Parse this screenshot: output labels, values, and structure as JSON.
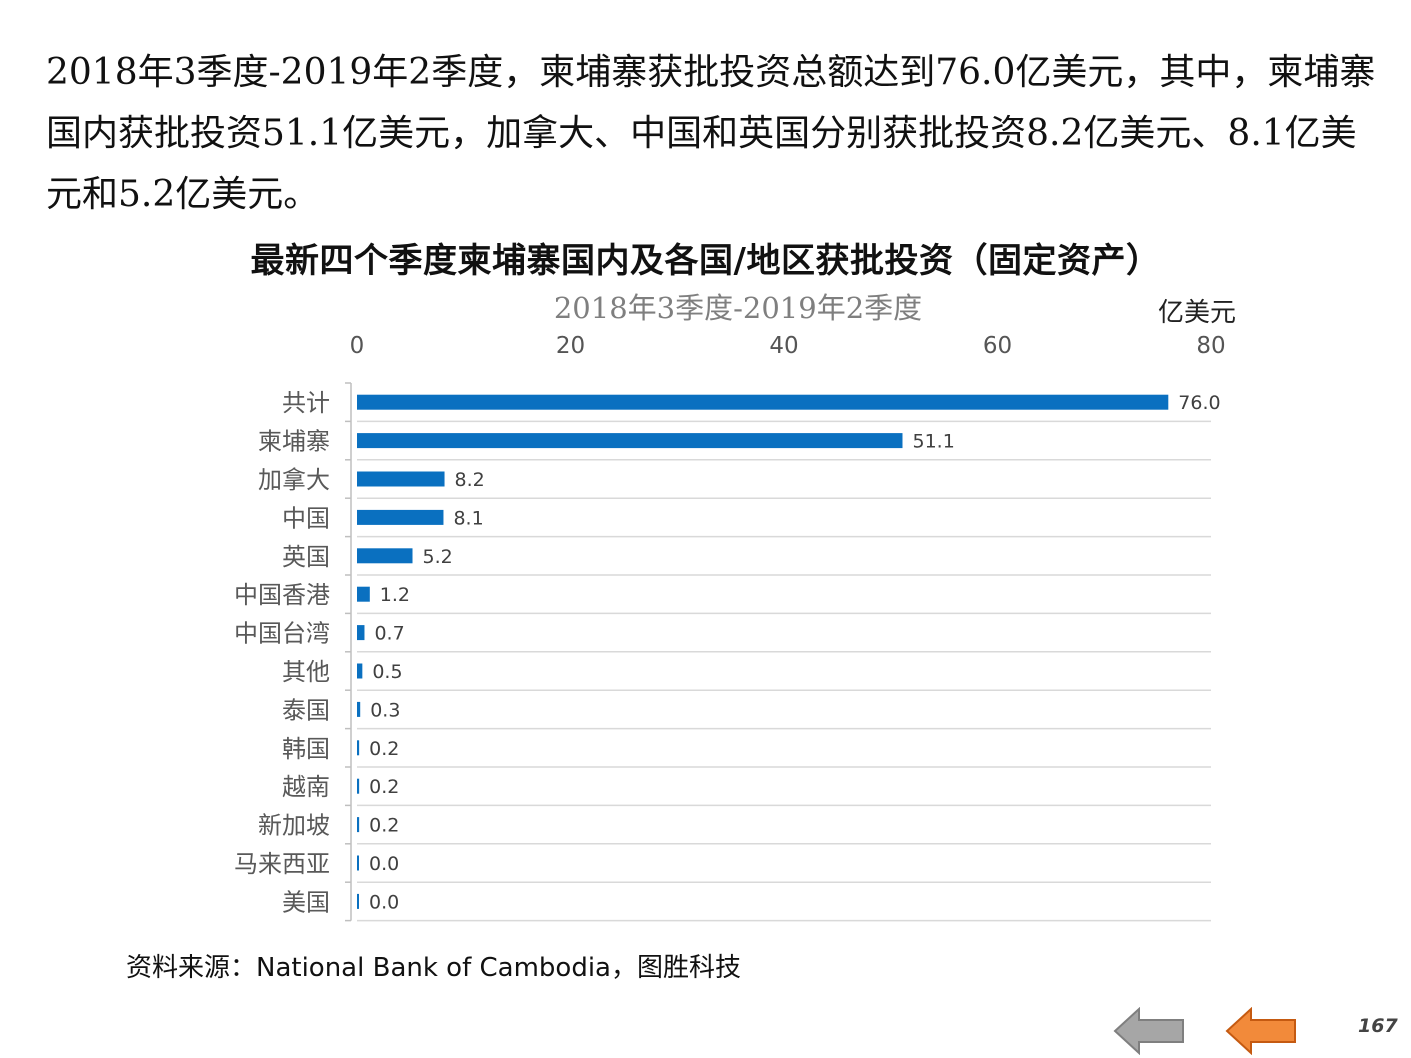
{
  "intro_text": "2018年3季度-2019年2季度，柬埔寨获批投资总额达到76.0亿美元，其中，柬埔寨国内获批投资51.1亿美元，加拿大、中国和英国分别获批投资8.2亿美元、8.1亿美元和5.2亿美元。",
  "source_text": "资料来源：National Bank of Cambodia，图胜科技",
  "page_number": "167",
  "navigation": {
    "prev_icon": "left-arrow-icon",
    "next_icon": "left-arrow-icon",
    "prev_color": "#a6a6a6",
    "next_color": "#f28a3a"
  },
  "chart_data": {
    "type": "bar",
    "orientation": "horizontal",
    "title": "最新四个季度柬埔寨国内及各国/地区获批投资（固定资产）",
    "subtitle": "2018年3季度-2019年2季度",
    "unit": "亿美元",
    "xlim": [
      0,
      80
    ],
    "ticks": [
      "0",
      "20",
      "40",
      "60",
      "80"
    ],
    "tick_values": [
      0,
      20,
      40,
      60,
      80
    ],
    "grid": true,
    "bar_color": "#0a70c0",
    "categories": [
      "共计",
      "柬埔寨",
      "加拿大",
      "中国",
      "英国",
      "中国香港",
      "中国台湾",
      "其他",
      "泰国",
      "韩国",
      "越南",
      "新加坡",
      "马来西亚",
      "美国"
    ],
    "values": [
      76.0,
      51.1,
      8.2,
      8.1,
      5.2,
      1.2,
      0.7,
      0.5,
      0.3,
      0.2,
      0.2,
      0.2,
      0.0,
      0.0
    ],
    "value_labels": [
      "76.0",
      "51.1",
      "8.2",
      "8.1",
      "5.2",
      "1.2",
      "0.7",
      "0.5",
      "0.3",
      "0.2",
      "0.2",
      "0.2",
      "0.0",
      "0.0"
    ]
  }
}
